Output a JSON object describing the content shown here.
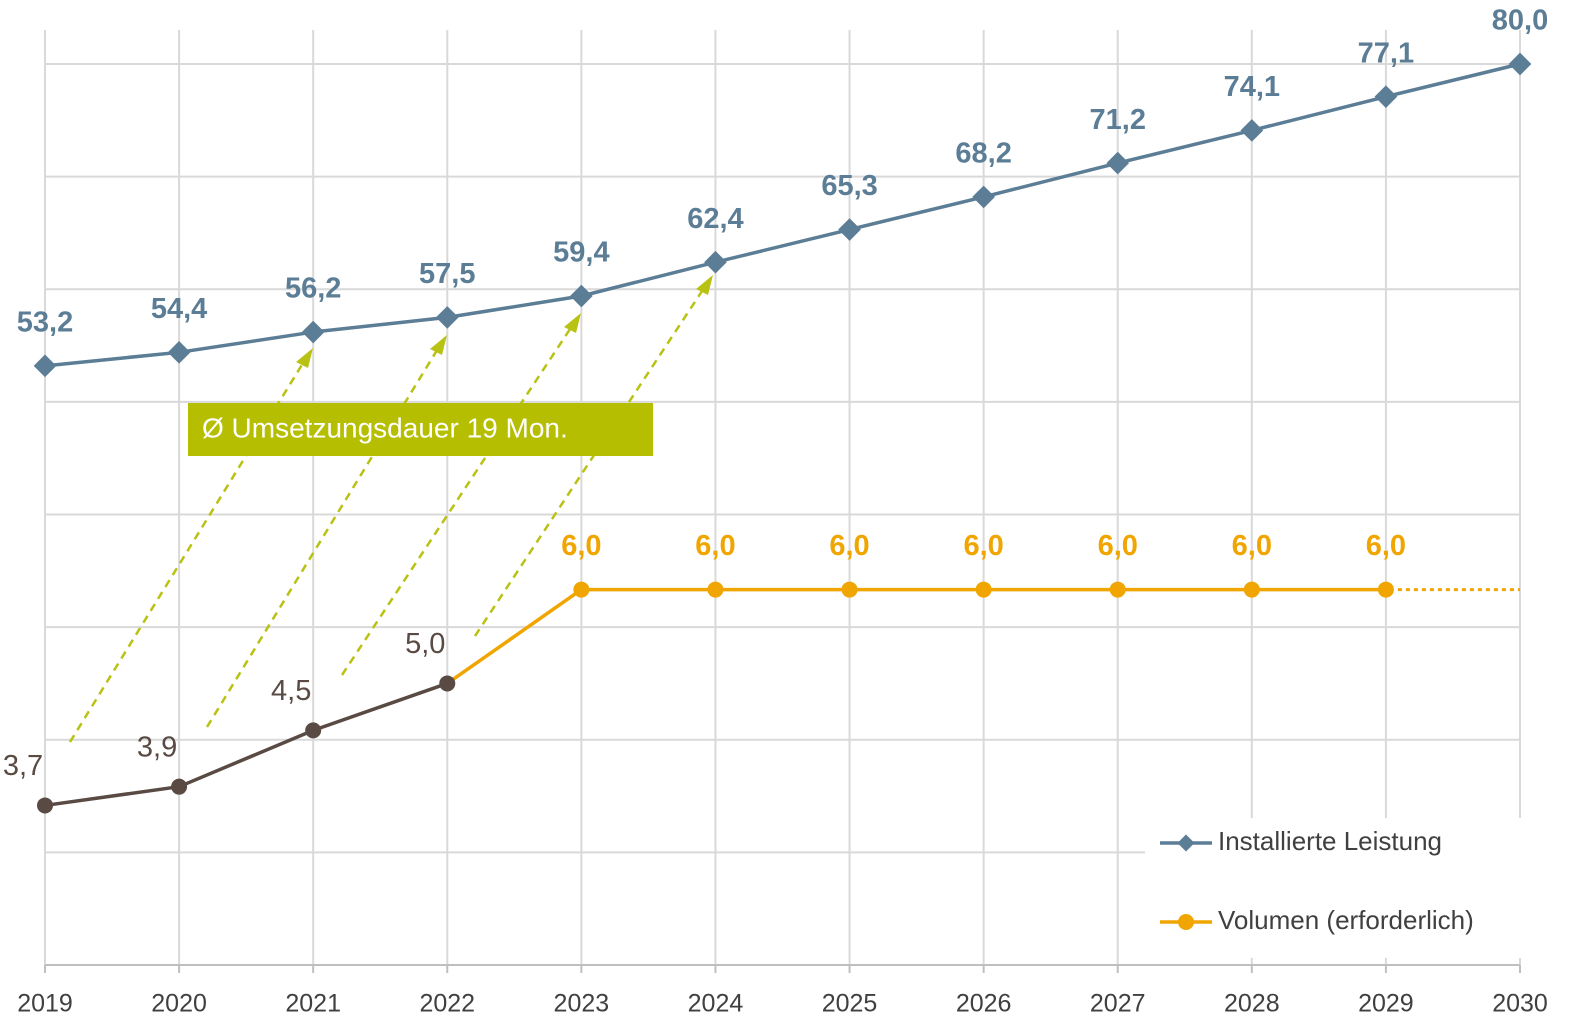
{
  "chart_data": {
    "type": "line",
    "categories": [
      "2019",
      "2020",
      "2021",
      "2022",
      "2023",
      "2024",
      "2025",
      "2026",
      "2027",
      "2028",
      "2029",
      "2030"
    ],
    "series": [
      {
        "name": "Installierte Leistung",
        "color": "#5b7d95",
        "axis": "y",
        "values": [
          53.2,
          54.4,
          56.2,
          57.5,
          59.4,
          62.4,
          65.3,
          68.2,
          71.2,
          74.1,
          77.1,
          80.0
        ],
        "value_labels": [
          "53,2",
          "54,4",
          "56,2",
          "57,5",
          "59,4",
          "62,4",
          "65,3",
          "68,2",
          "71,2",
          "74,1",
          "77,1",
          "80,0"
        ]
      },
      {
        "name": "Volumen (erforderlich)",
        "color": "#f0a500",
        "axis": "y2",
        "marker_colors": [
          "#5a4a44",
          "#5a4a44",
          "#5a4a44",
          "#5a4a44",
          "#f0a500",
          "#f0a500",
          "#f0a500",
          "#f0a500",
          "#f0a500",
          "#f0a500",
          "#f0a500",
          null
        ],
        "values": [
          3.7,
          3.9,
          4.5,
          5.0,
          6.0,
          6.0,
          6.0,
          6.0,
          6.0,
          6.0,
          6.0,
          null
        ],
        "value_labels": [
          "3,7",
          "3,9",
          "4,5",
          "5,0",
          "6,0",
          "6,0",
          "6,0",
          "6,0",
          "6,0",
          "6,0",
          "6,0",
          null
        ]
      }
    ],
    "ylim": [
      0,
      80
    ],
    "yticks": [
      0,
      10,
      20,
      30,
      40,
      50,
      60,
      70,
      80
    ],
    "y2lim": [
      2,
      11.6
    ],
    "grid": true,
    "annotation": "Ø Umsetzungsdauer 19 Mon.",
    "legend": "lower right"
  }
}
